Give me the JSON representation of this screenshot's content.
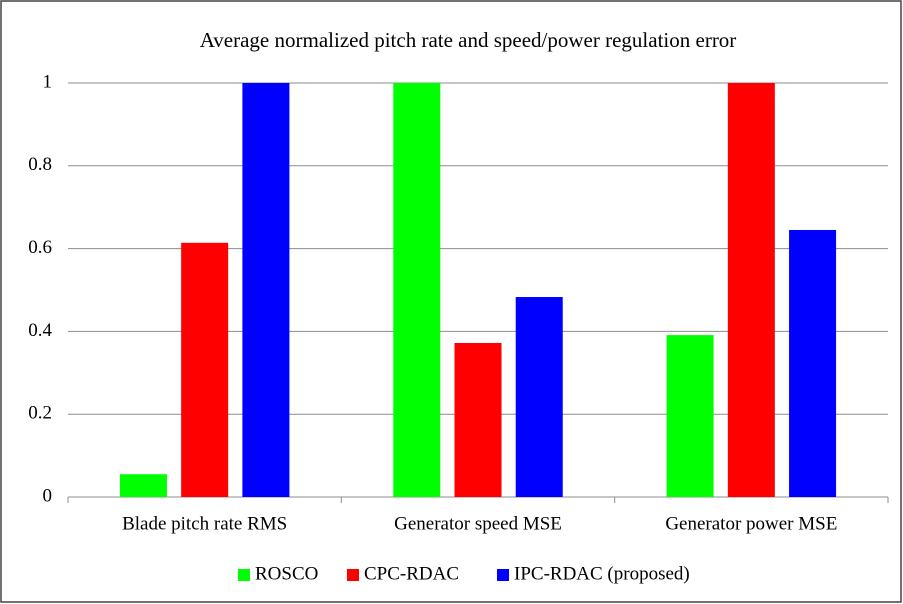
{
  "chart_data": {
    "type": "bar",
    "title": "Average normalized pitch rate and speed/power regulation error",
    "categories": [
      "Blade pitch rate RMS",
      "Generator speed MSE",
      "Generator power MSE"
    ],
    "series": [
      {
        "name": "ROSCO",
        "color": "#00ff00",
        "values": [
          0.055,
          1,
          0.391
        ]
      },
      {
        "name": "CPC-RDAC",
        "color": "#ff0000",
        "values": [
          0.614,
          0.372,
          1
        ]
      },
      {
        "name": "IPC-RDAC (proposed)",
        "color": "#0000ff",
        "values": [
          1,
          0.483,
          0.645
        ]
      }
    ],
    "ylim": [
      0,
      1
    ],
    "yticks": [
      0,
      0.2,
      0.4,
      0.6,
      0.8,
      1
    ],
    "grid": true,
    "legend": "bottom"
  }
}
